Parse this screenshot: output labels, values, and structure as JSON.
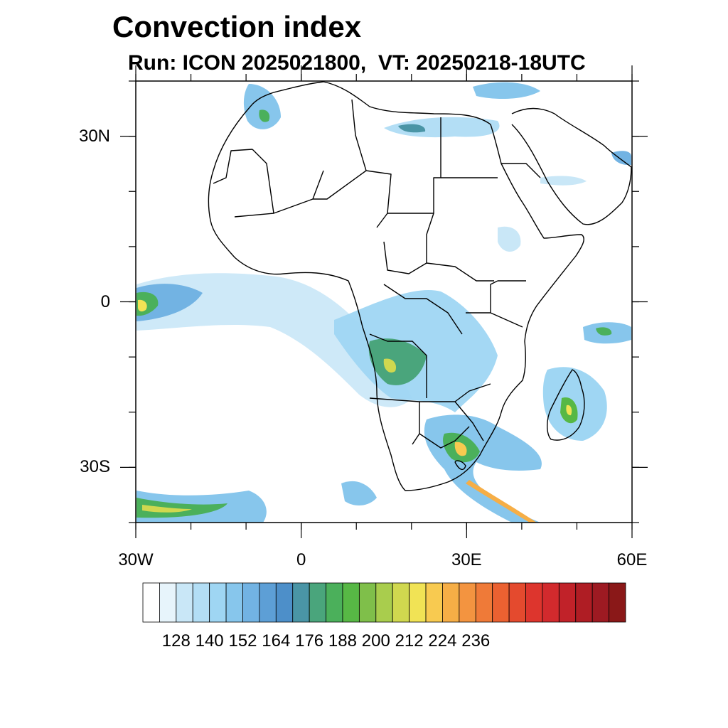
{
  "title": "Convection index",
  "subtitle": "Run: ICON 2025021800,  VT: 20250218-18UTC",
  "map": {
    "projection": "cylindrical equidistant",
    "lon_range": [
      -30,
      60
    ],
    "lat_range": [
      -40,
      40
    ],
    "lat_ticks": [
      {
        "label": "30N",
        "lat": 30
      },
      {
        "label": "0",
        "lat": 0
      },
      {
        "label": "30S",
        "lat": -30
      }
    ],
    "lon_ticks": [
      {
        "label": "30W",
        "lon": -30
      },
      {
        "label": "0",
        "lon": 0
      },
      {
        "label": "30E",
        "lon": 30
      },
      {
        "label": "60E",
        "lon": 60
      }
    ]
  },
  "colorbar": {
    "labels": [
      "128",
      "140",
      "152",
      "164",
      "176",
      "188",
      "200",
      "212",
      "224",
      "236"
    ],
    "colors": [
      "#ffffff",
      "#e7f4fb",
      "#c9e7f7",
      "#b3def5",
      "#9fd6f3",
      "#87c6ec",
      "#72b3e3",
      "#5d9fd6",
      "#4d8fc9",
      "#4a95a6",
      "#4aa57c",
      "#4bb05b",
      "#57b845",
      "#7fbf4a",
      "#a9cd4d",
      "#d0d84f",
      "#f1e355",
      "#f8ca50",
      "#f6ae46",
      "#f39440",
      "#ef7a38",
      "#eb6131",
      "#e44a2e",
      "#dd352d",
      "#d22a2d",
      "#c12229",
      "#af1d24",
      "#9d1a22",
      "#8a1818"
    ]
  }
}
